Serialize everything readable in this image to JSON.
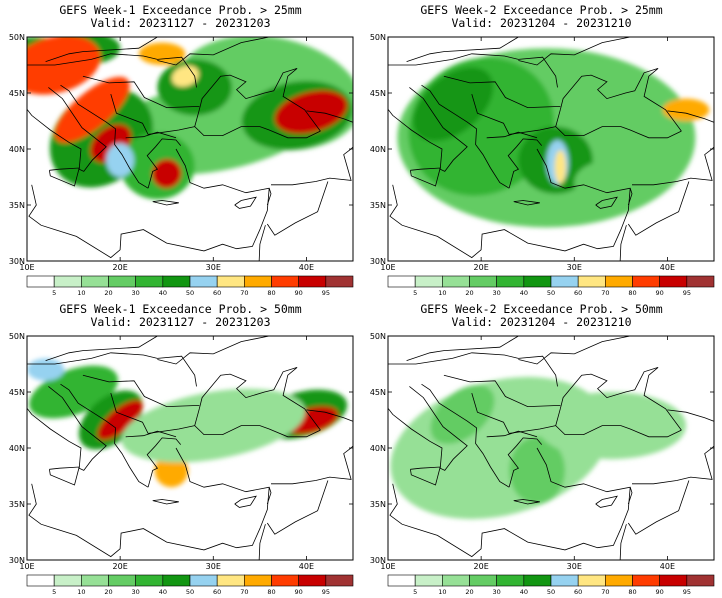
{
  "colorbar": {
    "colors": [
      "#ffffff",
      "#c8f0c8",
      "#96e096",
      "#64cc64",
      "#32b432",
      "#129612",
      "#96d2f0",
      "#ffe682",
      "#ffaa00",
      "#ff3c00",
      "#c80000",
      "#a03232"
    ],
    "ticks": [
      "5",
      "10",
      "20",
      "30",
      "40",
      "50",
      "60",
      "70",
      "80",
      "90",
      "95"
    ]
  },
  "axes": {
    "lat_labels": [
      "50N",
      "45N",
      "40N",
      "35N",
      "30N"
    ],
    "lon_labels": [
      "10E",
      "20E",
      "30E",
      "40E"
    ]
  },
  "panels": [
    {
      "id": "week1-25mm",
      "title": "GEFS Week-1 Exceedance Prob. > 25mm",
      "valid": "Valid: 20231127 - 20231203",
      "intensity": "high"
    },
    {
      "id": "week2-25mm",
      "title": "GEFS Week-2 Exceedance Prob. > 25mm",
      "valid": "Valid: 20231204 - 20231210",
      "intensity": "medium"
    },
    {
      "id": "week1-50mm",
      "title": "GEFS Week-1 Exceedance Prob. > 50mm",
      "valid": "Valid: 20231127 - 20231203",
      "intensity": "medium-high"
    },
    {
      "id": "week2-50mm",
      "title": "GEFS Week-2 Exceedance Prob. > 50mm",
      "valid": "Valid: 20231204 - 20231210",
      "intensity": "low"
    }
  ]
}
